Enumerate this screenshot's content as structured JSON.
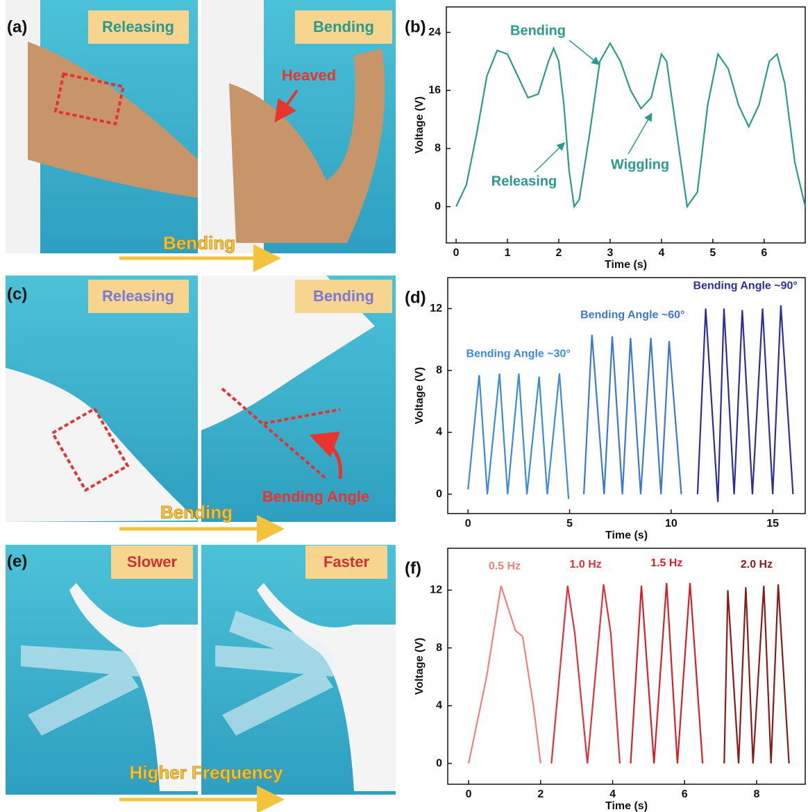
{
  "photo_panels": [
    {
      "label": "(a)",
      "left_tag": "Releasing",
      "right_tag": "Bending",
      "callout": "Heaved",
      "arrow_text": "Bending"
    },
    {
      "label": "(c)",
      "left_tag": "Releasing",
      "right_tag": "Bending",
      "callout": "Bending Angle",
      "arrow_text": "Bending"
    },
    {
      "label": "(e)",
      "left_tag": "Slower",
      "right_tag": "Faster",
      "arrow_text": "Higher Frequency"
    }
  ],
  "chart_data": [
    {
      "type": "line",
      "panel_label": "(b)",
      "xlabel": "Time (s)",
      "ylabel": "Voltage (V)",
      "xlim": [
        -0.19,
        6.8
      ],
      "ylim": [
        -5,
        27.5
      ],
      "xticks": [
        0,
        1,
        2,
        3,
        4,
        5,
        6
      ],
      "yticks": [
        0,
        8,
        16,
        24
      ],
      "annotations": [
        "Bending",
        "Releasing",
        "Wiggling"
      ],
      "series": [
        {
          "color": "#2a9a8c",
          "x": [
            0,
            0.2,
            0.4,
            0.6,
            0.8,
            1.0,
            1.2,
            1.4,
            1.6,
            1.8,
            1.9,
            2.0,
            2.1,
            2.2,
            2.3,
            2.4,
            2.6,
            2.8,
            3.0,
            3.2,
            3.4,
            3.6,
            3.8,
            4.0,
            4.1,
            4.3,
            4.5,
            4.7,
            4.9,
            5.1,
            5.3,
            5.5,
            5.7,
            5.9,
            6.1,
            6.25,
            6.4,
            6.6,
            6.8
          ],
          "values": [
            0,
            3,
            10,
            18,
            21.5,
            21,
            18,
            15,
            15.5,
            20,
            21.8,
            20,
            14,
            5,
            0,
            1,
            10,
            20,
            22.5,
            20,
            16,
            13.5,
            15,
            21,
            20,
            10,
            0,
            2,
            14,
            21,
            19,
            14,
            11,
            14,
            20,
            21,
            17,
            6,
            0
          ]
        }
      ]
    },
    {
      "type": "line",
      "panel_label": "(d)",
      "xlabel": "Time (s)",
      "ylabel": "Voltage (V)",
      "xlim": [
        -1.0,
        16.6
      ],
      "ylim": [
        -1.25,
        14
      ],
      "xticks": [
        0,
        5,
        10,
        15
      ],
      "yticks": [
        0,
        4,
        8,
        12
      ],
      "series": [
        {
          "name": "Bending Angle ~30°",
          "color": "#3d8ad6",
          "x": [
            0,
            0.55,
            0.95,
            1.55,
            1.95,
            2.5,
            2.9,
            3.5,
            3.9,
            4.5,
            4.95
          ],
          "values": [
            0.3,
            7.7,
            0,
            7.8,
            0,
            7.8,
            0,
            7.6,
            0,
            7.8,
            -0.3
          ]
        },
        {
          "name": "Bending Angle ~60°",
          "color": "#3b78d0",
          "x": [
            5.7,
            6.1,
            6.7,
            7.1,
            7.6,
            8.0,
            8.5,
            9.0,
            9.5,
            9.9,
            10.5
          ],
          "values": [
            0,
            10.3,
            0,
            10.2,
            0,
            10.1,
            0,
            10.1,
            0,
            9.9,
            0
          ]
        },
        {
          "name": "Bending Angle ~90°",
          "color": "#2e2e9a",
          "x": [
            11.3,
            11.7,
            12.3,
            12.6,
            13.1,
            13.5,
            14.0,
            14.5,
            15.0,
            15.4,
            16.0
          ],
          "values": [
            0,
            12,
            -0.5,
            12,
            0,
            11.9,
            0,
            12,
            0,
            12.2,
            0
          ]
        }
      ]
    },
    {
      "type": "line",
      "panel_label": "(f)",
      "xlabel": "Time (s)",
      "ylabel": "Voltage (V)",
      "xlim": [
        -0.58,
        9.35
      ],
      "ylim": [
        -1.44,
        14.9
      ],
      "xticks": [
        0,
        2,
        4,
        6,
        8
      ],
      "yticks": [
        0,
        4,
        8,
        12
      ],
      "series": [
        {
          "name": "0.5 Hz",
          "color": "#f08080",
          "x": [
            0,
            0.5,
            0.9,
            1.3,
            1.5,
            1.8,
            2.0
          ],
          "values": [
            0,
            6,
            12.3,
            9.2,
            8.8,
            4,
            0
          ]
        },
        {
          "name": "1.0 Hz",
          "color": "#e0303a",
          "x": [
            2.3,
            2.75,
            2.95,
            3.3,
            3.75,
            3.95,
            4.2
          ],
          "values": [
            0,
            12.3,
            9,
            0,
            12.4,
            9,
            0
          ]
        },
        {
          "name": "1.5 Hz",
          "color": "#d4202a",
          "x": [
            4.5,
            4.8,
            5.15,
            5.5,
            5.8,
            6.15,
            6.5
          ],
          "values": [
            0,
            12.3,
            0,
            12.5,
            0,
            12.5,
            0
          ]
        },
        {
          "name": "2.0 Hz",
          "color": "#8b1a1a",
          "x": [
            7.1,
            7.2,
            7.5,
            7.7,
            7.9,
            8.2,
            8.4,
            8.6,
            8.9
          ],
          "values": [
            0,
            12,
            0,
            12.2,
            0,
            12.3,
            0,
            12.4,
            0
          ]
        }
      ]
    }
  ]
}
